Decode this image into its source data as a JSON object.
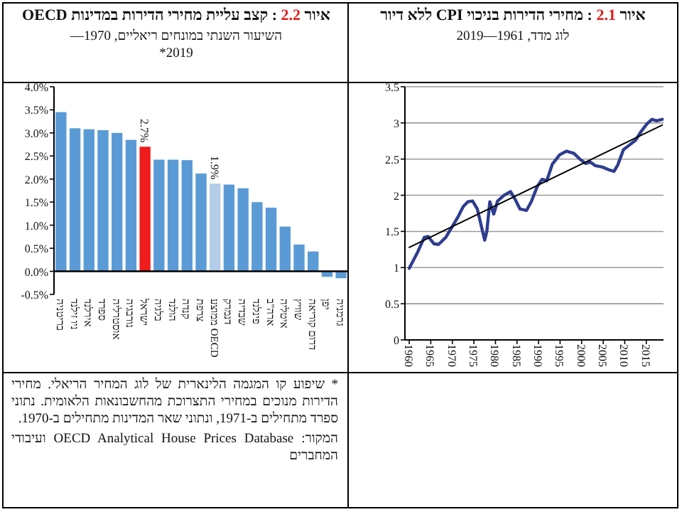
{
  "chart_data": [
    {
      "type": "line",
      "title": "איור 2.1 : מחירי הדירות בניכוי CPI ללא דיור",
      "subtitle": "לוג מדד, 1961—2019",
      "xlim": [
        1959,
        2019
      ],
      "xticks": [
        1960,
        1965,
        1970,
        1975,
        1980,
        1985,
        1990,
        1995,
        2000,
        2005,
        2010,
        2015
      ],
      "ylim": [
        0,
        3.5
      ],
      "yticks": [
        0,
        0.5,
        1,
        1.5,
        2,
        2.5,
        3,
        3.5
      ],
      "grid": "y",
      "series": [
        {
          "type": "line",
          "color": "#2e3d8f",
          "x": [
            1960,
            1962,
            1963.5,
            1964.4,
            1965.7,
            1966.8,
            1968.5,
            1970.1,
            1971.4,
            1972.5,
            1973.6,
            1974.7,
            1975.8,
            1976.7,
            1977.5,
            1978,
            1978.7,
            1979.6,
            1980.5,
            1982,
            1983.5,
            1984.6,
            1985.7,
            1987.2,
            1988.3,
            1989.7,
            1990.8,
            1991.9,
            1993.2,
            1994.9,
            1996.5,
            1998.2,
            1999.6,
            2000.9,
            2002,
            2003.1,
            2004.8,
            2006.4,
            2007.5,
            2008.4,
            2009.7,
            2011,
            2012.5,
            2013.9,
            2015.2,
            2016.3,
            2017.4,
            2018.7
          ],
          "values": [
            0.99,
            1.22,
            1.42,
            1.43,
            1.33,
            1.32,
            1.42,
            1.58,
            1.71,
            1.84,
            1.91,
            1.92,
            1.81,
            1.58,
            1.38,
            1.5,
            1.91,
            1.74,
            1.92,
            2.0,
            2.05,
            1.94,
            1.81,
            1.79,
            1.91,
            2.12,
            2.22,
            2.2,
            2.43,
            2.56,
            2.61,
            2.58,
            2.5,
            2.44,
            2.46,
            2.41,
            2.39,
            2.35,
            2.33,
            2.42,
            2.63,
            2.69,
            2.76,
            2.89,
            2.99,
            3.05,
            3.03,
            3.05
          ]
        },
        {
          "type": "line",
          "color": "#000000",
          "x": [
            1960,
            2018.7
          ],
          "values": [
            1.28,
            2.97
          ]
        }
      ]
    },
    {
      "type": "bar",
      "title": "איור 2.2 : קצב עליית מחירי הדירות במדינות OECD",
      "subtitle": "השיעור השנתי במונחים ריאליים, 1970—2019*",
      "categories": [
        "בריטניה",
        "ניו זילנד",
        "אירלנד",
        "ספרד",
        "אוסטרליה",
        "נורבגיה",
        "ישראל",
        "בלגיה",
        "הולנד",
        "קנדה",
        "צרפת",
        "ממוצע OECD",
        "דנמרק",
        "שבדיה",
        "פינלנד",
        "ארה\"ב",
        "איטליה",
        "שוויץ",
        "דרום קוריאה",
        "יפן",
        "גרמניה"
      ],
      "values": [
        3.45,
        3.1,
        3.08,
        3.06,
        3.0,
        2.85,
        2.7,
        2.42,
        2.42,
        2.41,
        2.12,
        1.9,
        1.88,
        1.8,
        1.5,
        1.38,
        0.97,
        0.58,
        0.43,
        -0.12,
        -0.15
      ],
      "colors": [
        "#5b9bd5",
        "#5b9bd5",
        "#5b9bd5",
        "#5b9bd5",
        "#5b9bd5",
        "#5b9bd5",
        "#ee1c1c",
        "#5b9bd5",
        "#5b9bd5",
        "#5b9bd5",
        "#5b9bd5",
        "#b4cde8",
        "#5b9bd5",
        "#5b9bd5",
        "#5b9bd5",
        "#5b9bd5",
        "#5b9bd5",
        "#5b9bd5",
        "#5b9bd5",
        "#5b9bd5",
        "#5b9bd5"
      ],
      "value_labels": [
        null,
        null,
        null,
        null,
        null,
        null,
        "2.7%",
        null,
        null,
        null,
        null,
        "1.9%",
        null,
        null,
        null,
        null,
        null,
        null,
        null,
        null,
        null
      ],
      "ylim": [
        -0.5,
        4
      ],
      "yticks": [
        {
          "value": -0.5,
          "label": "-0.5%"
        },
        {
          "value": 0,
          "label": "0.0%"
        },
        {
          "value": 0.5,
          "label": "0.5%"
        },
        {
          "value": 1,
          "label": "1.0%"
        },
        {
          "value": 1.5,
          "label": "1.5%"
        },
        {
          "value": 2,
          "label": "2.0%"
        },
        {
          "value": 2.5,
          "label": "2.5%"
        },
        {
          "value": 3,
          "label": "3.0%"
        },
        {
          "value": 3.5,
          "label": "3.5%"
        },
        {
          "value": 4,
          "label": "4.0%"
        }
      ],
      "annotations": [
        "* שיפוע קו המגמה הלינארית של לוג המחיר הריאלי. מחירי הדירות מנוכים במחירי התצרוכת מהחשבונאות הלאומית. נתוני ספרד מתחילים ב-1971, ונתוני שאר המדינות מתחילים ב-1970.",
        "המקור: OECD Analytical House Prices Database ועיבודי המחברים"
      ]
    }
  ]
}
